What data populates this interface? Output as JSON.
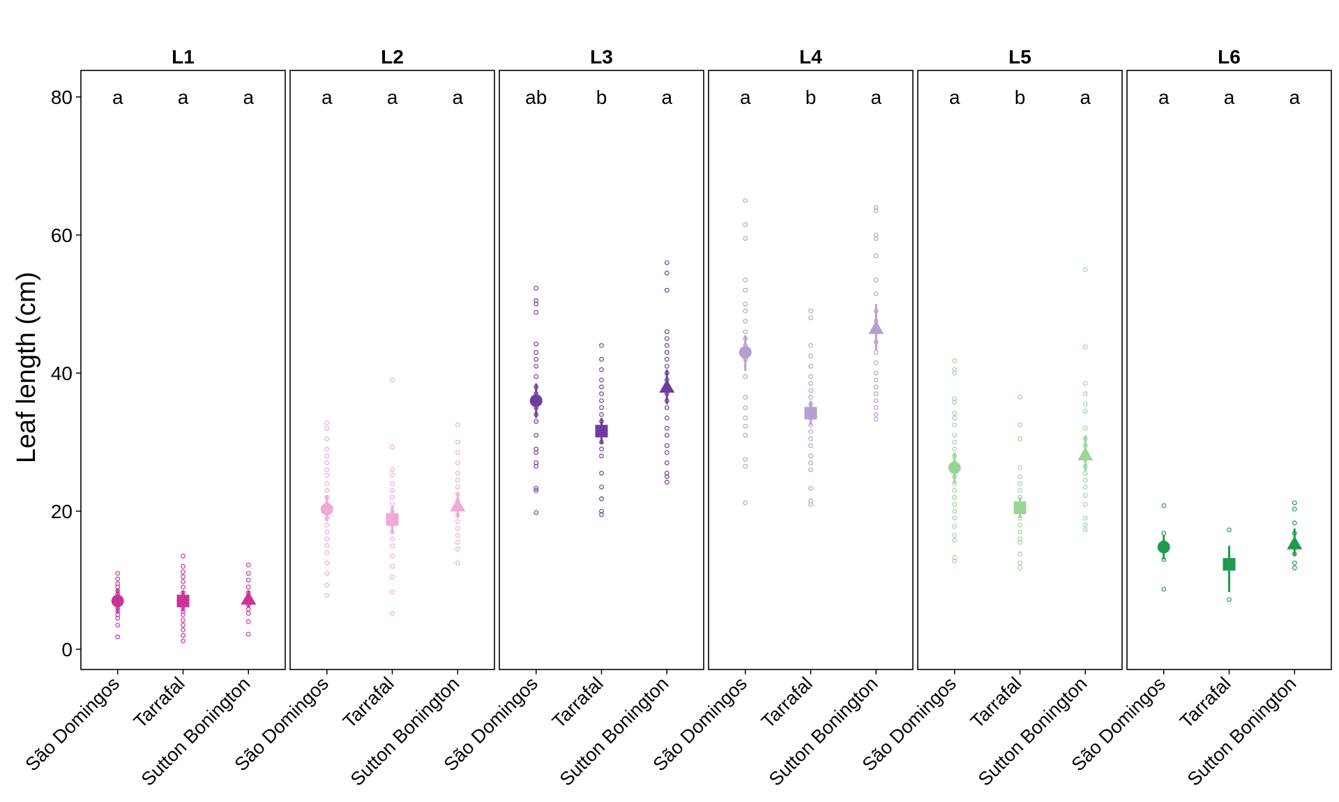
{
  "chart_data": {
    "type": "scatter",
    "ylabel": "Leaf length (cm)",
    "ylim": [
      -3,
      83
    ],
    "yticks": [
      0,
      20,
      40,
      60,
      80
    ],
    "categories": [
      "São Domingos",
      "Tarrafal",
      "Sutton Bonington"
    ],
    "panels": [
      {
        "name": "L1",
        "color": "#cc3399",
        "groups": [
          {
            "mean": 7.0,
            "lo": 5.2,
            "hi": 8.8,
            "letter": "a",
            "points": [
              1.8,
              3.5,
              4.5,
              5.0,
              5.5,
              6.0,
              6.5,
              7.0,
              7.5,
              8.0,
              8.5,
              9.0,
              9.5,
              10.2,
              11.0
            ]
          },
          {
            "mean": 7.0,
            "lo": 5.5,
            "hi": 8.5,
            "letter": "a",
            "points": [
              1.2,
              2.0,
              2.8,
              3.5,
              4.2,
              5.0,
              5.5,
              6.0,
              6.5,
              7.0,
              7.5,
              8.2,
              9.0,
              9.8,
              10.5,
              11.2,
              12.0,
              13.5
            ]
          },
          {
            "mean": 7.3,
            "lo": 6.0,
            "hi": 8.5,
            "letter": "a",
            "points": [
              2.2,
              4.0,
              5.2,
              5.8,
              6.4,
              7.0,
              7.6,
              8.2,
              9.0,
              10.0,
              11.0,
              12.2
            ]
          }
        ]
      },
      {
        "name": "L2",
        "color": "#eeaad4",
        "groups": [
          {
            "mean": 20.3,
            "lo": 18.5,
            "hi": 22.3,
            "letter": "a",
            "points": [
              7.8,
              9.3,
              11.0,
              12.5,
              14.0,
              15.0,
              16.0,
              17.0,
              18.0,
              19.0,
              20.0,
              21.0,
              22.0,
              23.0,
              24.0,
              25.2,
              26.0,
              27.0,
              28.0,
              29.0,
              30.5,
              32.0,
              32.8
            ]
          },
          {
            "mean": 18.8,
            "lo": 16.8,
            "hi": 20.8,
            "letter": "a",
            "points": [
              5.2,
              8.3,
              10.5,
              12.0,
              13.5,
              15.0,
              16.0,
              17.0,
              18.0,
              19.0,
              20.0,
              21.0,
              22.0,
              23.0,
              24.0,
              25.2,
              26.0,
              29.3,
              39.0
            ]
          },
          {
            "mean": 20.8,
            "lo": 19.0,
            "hi": 22.6,
            "letter": "a",
            "points": [
              12.5,
              14.5,
              15.5,
              16.5,
              17.5,
              18.5,
              19.5,
              20.5,
              21.5,
              22.5,
              23.5,
              24.5,
              25.5,
              27.0,
              28.5,
              30.0,
              32.5
            ]
          }
        ]
      },
      {
        "name": "L3",
        "color": "#6f3c9e",
        "groups": [
          {
            "mean": 36.0,
            "lo": 33.5,
            "hi": 38.5,
            "letter": "ab",
            "points": [
              19.8,
              23.0,
              23.3,
              26.5,
              27.0,
              28.5,
              29.0,
              31.0,
              33.0,
              34.0,
              35.0,
              36.0,
              37.0,
              38.0,
              39.5,
              41.0,
              42.0,
              43.0,
              44.2,
              48.8,
              50.0,
              50.5,
              52.3
            ]
          },
          {
            "mean": 31.6,
            "lo": 29.8,
            "hi": 33.5,
            "letter": "b",
            "points": [
              19.5,
              20.0,
              21.8,
              23.5,
              25.5,
              28.0,
              29.0,
              30.0,
              31.0,
              32.0,
              33.0,
              34.0,
              35.0,
              36.0,
              37.0,
              38.0,
              39.0,
              40.5,
              42.0,
              44.0
            ]
          },
          {
            "mean": 38.0,
            "lo": 35.5,
            "hi": 40.5,
            "letter": "a",
            "points": [
              24.2,
              25.0,
              25.5,
              27.0,
              28.5,
              29.5,
              31.0,
              32.0,
              33.5,
              35.0,
              36.0,
              37.0,
              38.0,
              39.0,
              40.0,
              41.0,
              42.0,
              43.0,
              44.0,
              45.0,
              46.0,
              52.0,
              54.5,
              56.0
            ]
          }
        ]
      },
      {
        "name": "L4",
        "color": "#b59fd0",
        "groups": [
          {
            "mean": 43.0,
            "lo": 40.3,
            "hi": 45.5,
            "letter": "a",
            "points": [
              21.2,
              26.5,
              27.5,
              31.0,
              32.3,
              33.5,
              35.0,
              36.5,
              39.5,
              42.0,
              44.0,
              45.0,
              46.0,
              47.5,
              49.0,
              50.0,
              52.0,
              53.5,
              59.5,
              61.5,
              65.0
            ]
          },
          {
            "mean": 34.2,
            "lo": 32.5,
            "hi": 36.0,
            "letter": "b",
            "points": [
              21.0,
              21.5,
              23.3,
              26.0,
              27.0,
              28.0,
              29.5,
              30.5,
              31.5,
              32.5,
              33.5,
              34.5,
              35.5,
              36.5,
              37.5,
              38.5,
              39.5,
              41.0,
              42.5,
              44.0,
              48.0,
              49.0
            ]
          },
          {
            "mean": 46.5,
            "lo": 43.3,
            "hi": 50.0,
            "letter": "a",
            "points": [
              33.3,
              34.0,
              35.0,
              36.0,
              37.0,
              38.0,
              39.0,
              40.0,
              41.5,
              43.0,
              44.5,
              46.0,
              47.5,
              49.0,
              51.5,
              53.5,
              57.0,
              59.5,
              60.0,
              63.5,
              64.0
            ]
          }
        ]
      },
      {
        "name": "L5",
        "color": "#99d599",
        "groups": [
          {
            "mean": 26.3,
            "lo": 24.0,
            "hi": 28.5,
            "letter": "a",
            "points": [
              12.8,
              13.3,
              15.8,
              16.5,
              17.8,
              19.0,
              20.0,
              21.0,
              22.0,
              23.0,
              24.0,
              25.0,
              26.0,
              27.0,
              28.0,
              29.0,
              30.0,
              31.0,
              32.5,
              33.5,
              34.2,
              35.8,
              36.3,
              40.0,
              40.5,
              41.8
            ]
          },
          {
            "mean": 20.5,
            "lo": 19.0,
            "hi": 22.0,
            "letter": "b",
            "points": [
              11.8,
              12.5,
              13.8,
              15.5,
              16.0,
              17.0,
              18.0,
              19.0,
              20.0,
              21.0,
              22.0,
              23.0,
              24.0,
              25.0,
              26.3,
              30.5,
              32.5,
              36.5
            ]
          },
          {
            "mean": 28.2,
            "lo": 25.8,
            "hi": 31.0,
            "letter": "a",
            "points": [
              17.3,
              18.0,
              19.0,
              21.0,
              22.3,
              23.5,
              24.5,
              25.5,
              26.5,
              27.5,
              28.5,
              29.5,
              30.5,
              32.0,
              34.5,
              35.5,
              37.0,
              38.5,
              43.8,
              55.0
            ]
          }
        ]
      },
      {
        "name": "L6",
        "color": "#1f9a4e",
        "groups": [
          {
            "mean": 14.8,
            "lo": 13.0,
            "hi": 16.5,
            "letter": "a",
            "points": [
              8.7,
              13.0,
              14.2,
              15.5,
              16.8,
              20.8
            ]
          },
          {
            "mean": 12.3,
            "lo": 8.3,
            "hi": 15.0,
            "letter": "a",
            "points": [
              7.2,
              17.3
            ]
          },
          {
            "mean": 15.3,
            "lo": 13.5,
            "hi": 17.5,
            "letter": "a",
            "points": [
              11.8,
              12.5,
              13.8,
              15.2,
              16.8,
              18.3,
              20.3,
              21.2
            ]
          }
        ]
      }
    ]
  }
}
